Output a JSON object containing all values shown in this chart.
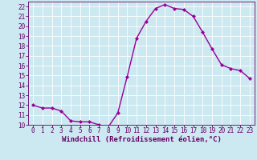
{
  "x": [
    0,
    1,
    2,
    3,
    4,
    5,
    6,
    7,
    8,
    9,
    10,
    11,
    12,
    13,
    14,
    15,
    16,
    17,
    18,
    19,
    20,
    21,
    22,
    23
  ],
  "y": [
    12.0,
    11.7,
    11.7,
    11.4,
    10.4,
    10.3,
    10.3,
    10.0,
    9.8,
    11.2,
    14.9,
    18.8,
    20.5,
    21.8,
    22.2,
    21.8,
    21.7,
    21.0,
    19.4,
    17.7,
    16.1,
    15.7,
    15.5,
    14.7
  ],
  "line_color": "#990099",
  "marker": "D",
  "marker_size": 2.0,
  "bg_color": "#cce8f0",
  "grid_color": "#ffffff",
  "xlabel": "Windchill (Refroidissement éolien,°C)",
  "xlabel_color": "#660066",
  "tick_color": "#660066",
  "spine_color": "#660066",
  "xlim": [
    -0.5,
    23.5
  ],
  "ylim": [
    10,
    22.5
  ],
  "yticks": [
    10,
    11,
    12,
    13,
    14,
    15,
    16,
    17,
    18,
    19,
    20,
    21,
    22
  ],
  "xticks": [
    0,
    1,
    2,
    3,
    4,
    5,
    6,
    7,
    8,
    9,
    10,
    11,
    12,
    13,
    14,
    15,
    16,
    17,
    18,
    19,
    20,
    21,
    22,
    23
  ],
  "tick_fontsize": 5.5,
  "xlabel_fontsize": 6.5,
  "xlabel_fontweight": "bold",
  "linewidth": 1.0
}
